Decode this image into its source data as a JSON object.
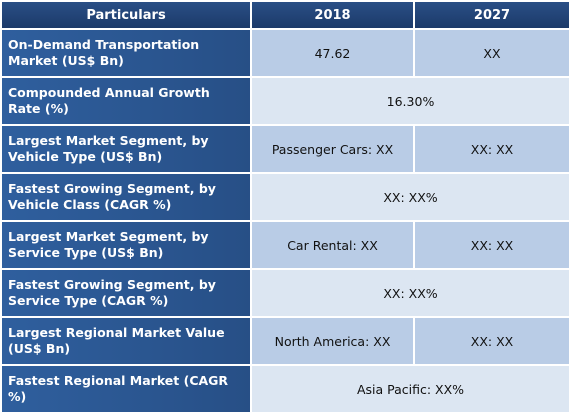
{
  "table": {
    "header": [
      "Particulars",
      "2018",
      "2027"
    ],
    "rows": [
      [
        "On-Demand Transportation Market (US$ Bn)",
        "47.62",
        "XX"
      ],
      [
        "Compounded Annual Growth Rate (%)",
        "16.30%"
      ],
      [
        "Largest Market Segment, by Vehicle Type (US$ Bn)",
        "Passenger Cars: XX",
        "XX: XX"
      ],
      [
        "Fastest Growing Segment, by Vehicle Class (CAGR %)",
        "XX: XX%"
      ],
      [
        "Largest Market Segment, by Service Type (US$ Bn)",
        "Car Rental: XX",
        "XX: XX"
      ],
      [
        "Fastest Growing Segment, by Service Type (CAGR %)",
        "XX: XX%"
      ],
      [
        "Largest Regional Market Value (US$ Bn)",
        "North America: XX",
        "XX: XX"
      ],
      [
        "Fastest Regional Market (CAGR %)",
        "Asia Pacific: XX%"
      ]
    ]
  }
}
